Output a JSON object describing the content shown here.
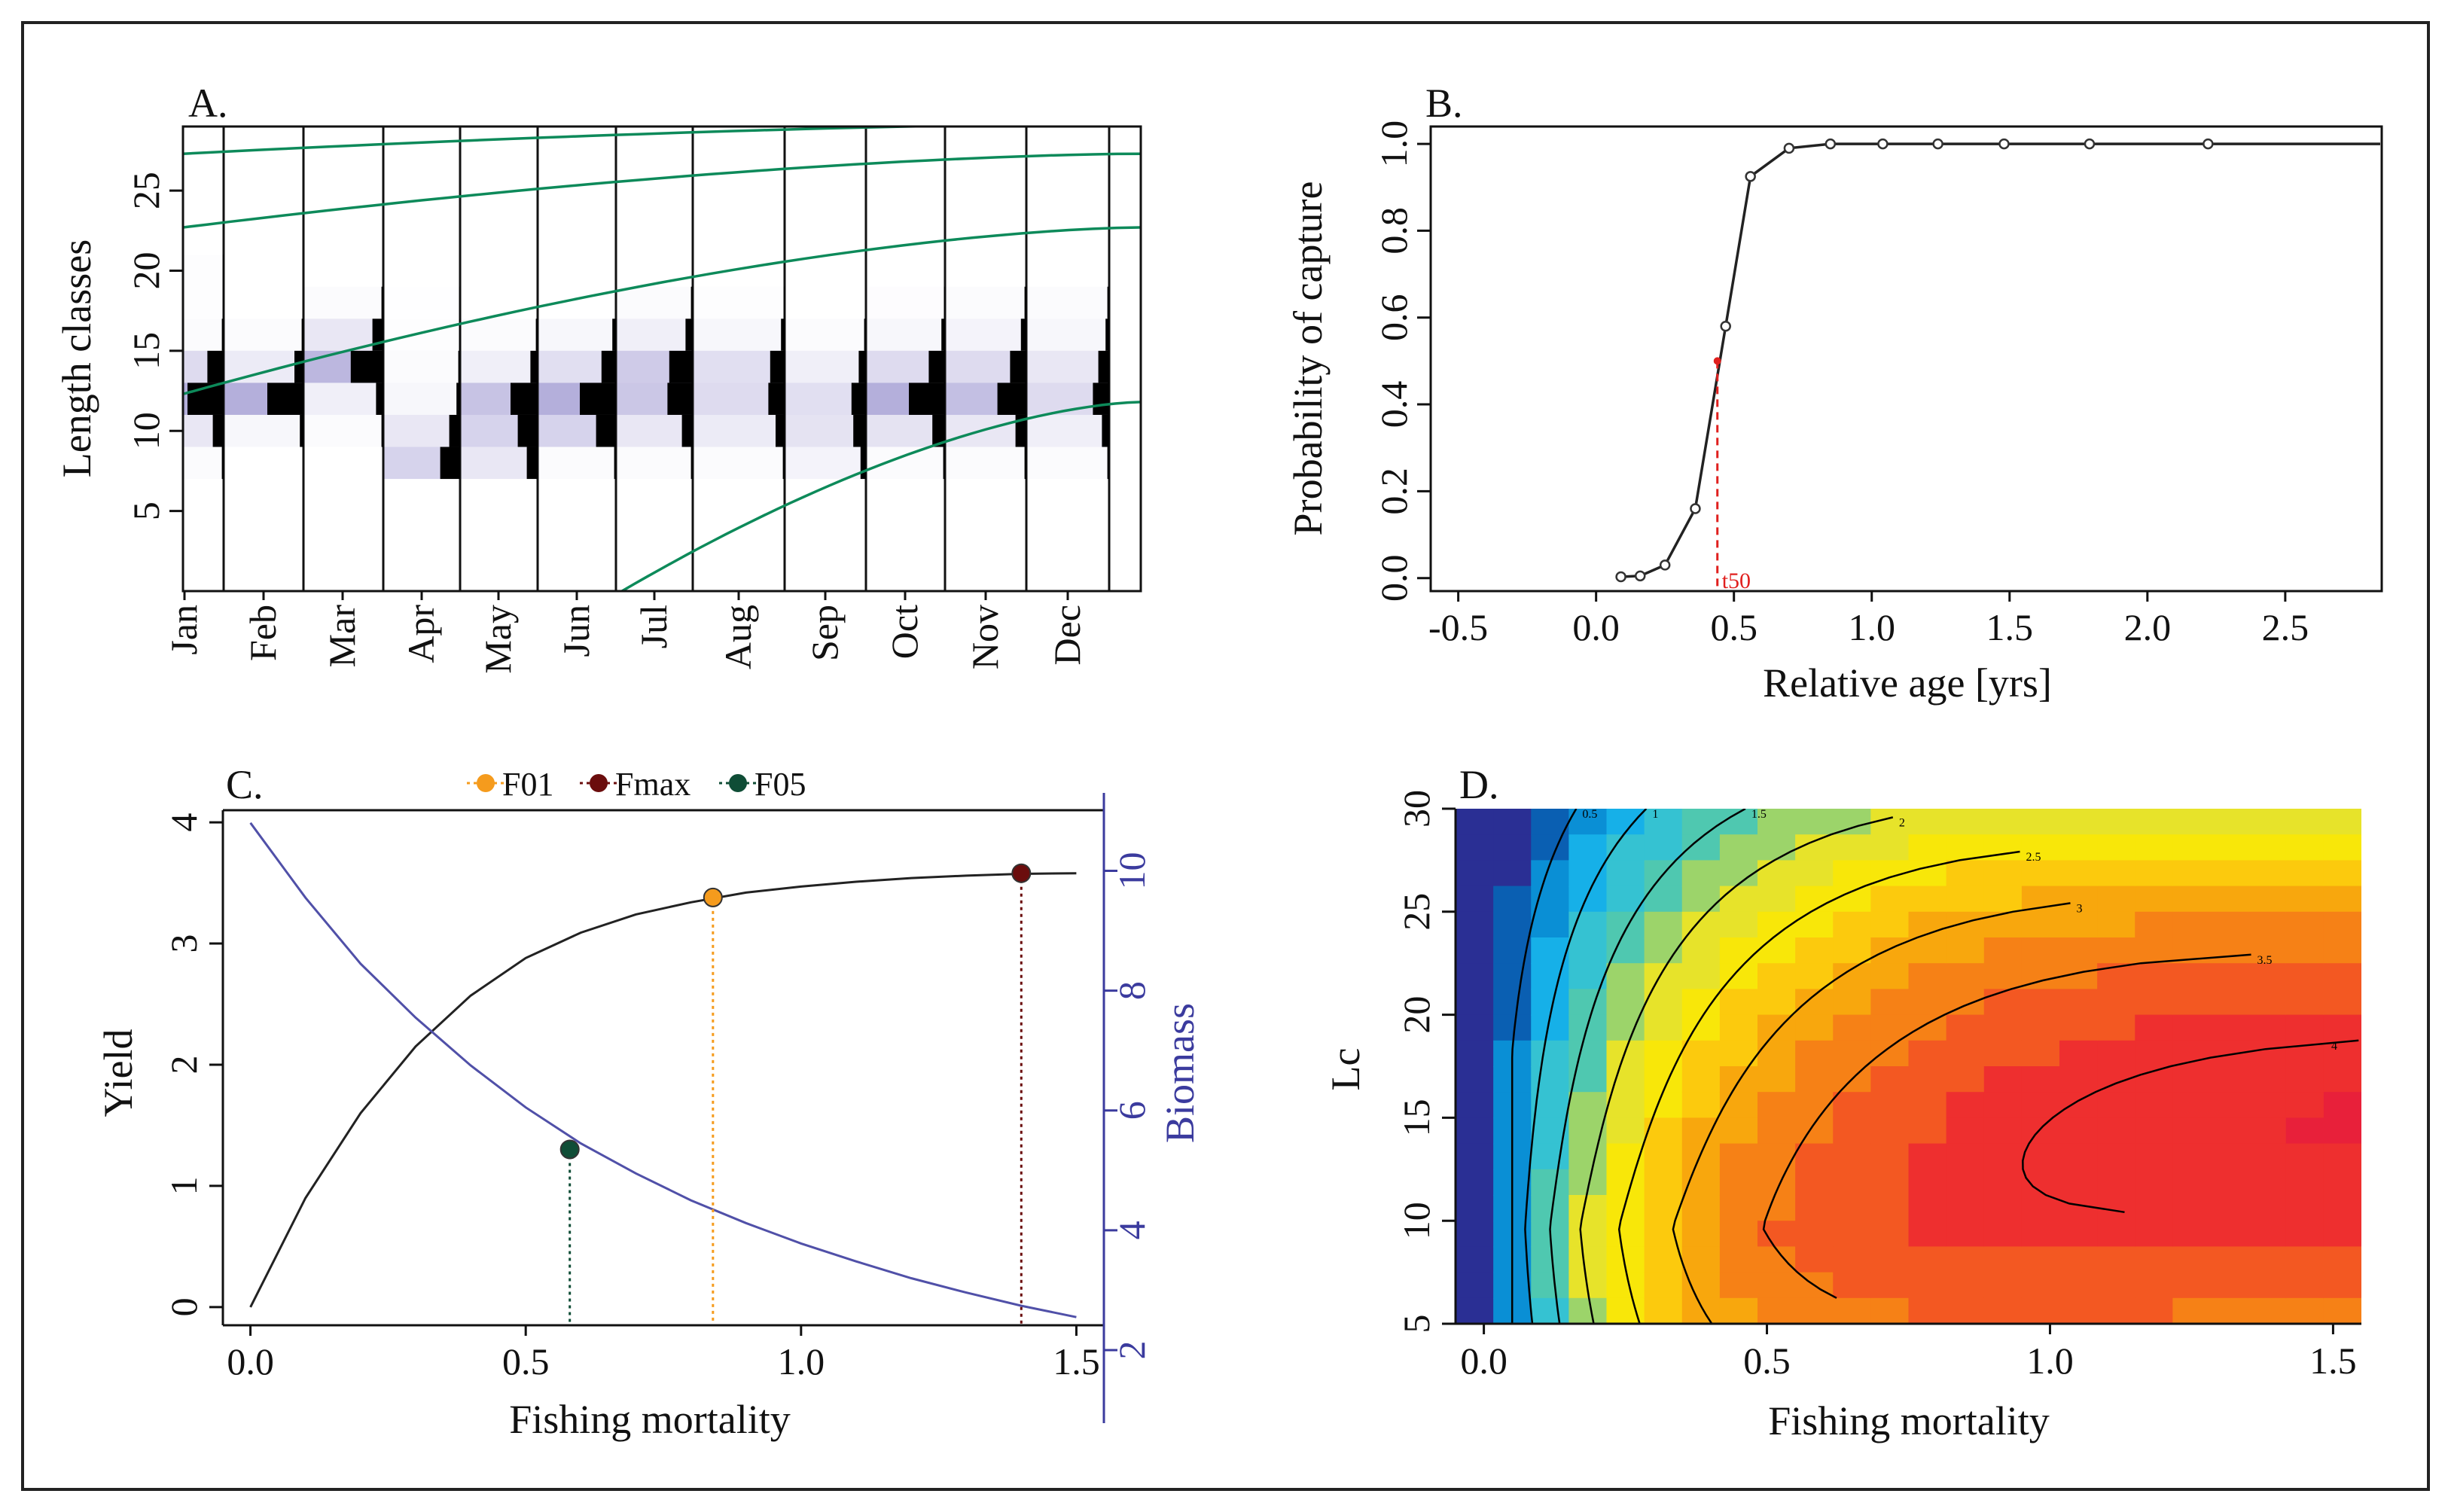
{
  "panels": {
    "A": {
      "label": "A.",
      "chart_data": {
        "type": "heatmap",
        "title": "",
        "xlabel": "",
        "ylabel": "Length classes",
        "months": [
          "Jan",
          "Feb",
          "Mar",
          "Apr",
          "May",
          "Jun",
          "Jul",
          "Aug",
          "Sep",
          "Oct",
          "Nov",
          "Dec"
        ],
        "ylim": [
          0,
          29
        ],
        "yticks": [
          5,
          10,
          15,
          20,
          25
        ],
        "length_bins": [
          8,
          10,
          12,
          14,
          16,
          18,
          20
        ],
        "samples": [
          {
            "month": 0.0,
            "freq": [
              0.05,
              0.3,
              1.0,
              0.45,
              0.05,
              0.02,
              0.02
            ]
          },
          {
            "month": 1.0,
            "freq": [
              0.0,
              0.1,
              1.0,
              0.25,
              0.05,
              0.0,
              0.0
            ]
          },
          {
            "month": 2.0,
            "freq": [
              0.0,
              0.05,
              0.2,
              0.9,
              0.3,
              0.05,
              0.0
            ]
          },
          {
            "month": 3.0,
            "freq": [
              0.55,
              0.3,
              0.1,
              0.05,
              0.02,
              0.01,
              0.0
            ]
          },
          {
            "month": 4.0,
            "freq": [
              0.3,
              0.55,
              0.75,
              0.2,
              0.05,
              0.0,
              0.0
            ]
          },
          {
            "month": 5.0,
            "freq": [
              0.05,
              0.55,
              1.0,
              0.4,
              0.1,
              0.0,
              0.0
            ]
          },
          {
            "month": 6.0,
            "freq": [
              0.05,
              0.3,
              0.7,
              0.65,
              0.2,
              0.05,
              0.0
            ]
          },
          {
            "month": 7.0,
            "freq": [
              0.05,
              0.25,
              0.45,
              0.4,
              0.1,
              0.02,
              0.0
            ]
          },
          {
            "month": 8.0,
            "freq": [
              0.15,
              0.35,
              0.4,
              0.2,
              0.05,
              0.0,
              0.0
            ]
          },
          {
            "month": 9.0,
            "freq": [
              0.05,
              0.35,
              1.0,
              0.45,
              0.1,
              0.03,
              0.0
            ]
          },
          {
            "month": 10.0,
            "freq": [
              0.05,
              0.3,
              0.8,
              0.45,
              0.15,
              0.05,
              0.0
            ]
          },
          {
            "month": 11.0,
            "freq": [
              0.05,
              0.2,
              0.45,
              0.3,
              0.1,
              0.05,
              0.0
            ]
          }
        ],
        "growth_curves": [
          {
            "x": [
              0,
              12
            ],
            "y": [
              27.3,
              29.2
            ]
          },
          {
            "x": [
              0,
              12
            ],
            "y": [
              22.7,
              27.3
            ]
          },
          {
            "x": [
              0,
              12
            ],
            "y": [
              12.3,
              22.7
            ]
          },
          {
            "x": [
              5.5,
              12
            ],
            "y": [
              0,
              11.8
            ]
          }
        ]
      }
    },
    "B": {
      "label": "B.",
      "chart_data": {
        "type": "line",
        "title": "",
        "xlabel": "Relative age [yrs]",
        "ylabel": "Probability of capture",
        "xlim": [
          -0.6,
          2.85
        ],
        "ylim": [
          -0.03,
          1.04
        ],
        "xticks": [
          -0.5,
          0.0,
          0.5,
          1.0,
          1.5,
          2.0,
          2.5
        ],
        "xtick_labels": [
          "-0.5",
          "0.0",
          "0.5",
          "1.0",
          "1.5",
          "2.0",
          "2.5"
        ],
        "yticks": [
          0.0,
          0.2,
          0.4,
          0.6,
          0.8,
          1.0
        ],
        "ytick_labels": [
          "0.0",
          "0.2",
          "0.4",
          "0.6",
          "0.8",
          "1.0"
        ],
        "x": [
          0.09,
          0.16,
          0.25,
          0.36,
          0.47,
          0.56,
          0.7,
          0.85,
          1.04,
          1.24,
          1.48,
          1.79,
          2.22
        ],
        "y": [
          0.003,
          0.005,
          0.03,
          0.16,
          0.58,
          0.925,
          0.99,
          1.0,
          1.0,
          1.0,
          1.0,
          1.0,
          1.0
        ],
        "t50": {
          "x": 0.44,
          "y": 0.5,
          "label": "t50"
        }
      }
    },
    "C": {
      "label": "C.",
      "chart_data": {
        "type": "line",
        "title": "",
        "xlabel": "Fishing mortality",
        "ylabel": "Yield",
        "ylabel_right": "Biomass",
        "xlim": [
          -0.05,
          1.55
        ],
        "ylim": [
          -0.15,
          4.1
        ],
        "ylim_right": [
          2.0,
          11.3
        ],
        "xticks": [
          0.0,
          0.5,
          1.0,
          1.5
        ],
        "xtick_labels": [
          "0.0",
          "0.5",
          "1.0",
          "1.5"
        ],
        "yticks": [
          0,
          1,
          2,
          3,
          4
        ],
        "yticks_right": [
          2,
          4,
          6,
          8,
          10
        ],
        "series": [
          {
            "name": "Yield",
            "color": "#222222",
            "x": [
              0.0,
              0.1,
              0.2,
              0.3,
              0.4,
              0.5,
              0.6,
              0.7,
              0.8,
              0.9,
              1.0,
              1.1,
              1.2,
              1.3,
              1.4,
              1.5
            ],
            "y": [
              0.0,
              0.9,
              1.6,
              2.15,
              2.57,
              2.88,
              3.09,
              3.24,
              3.34,
              3.42,
              3.47,
              3.51,
              3.54,
              3.56,
              3.575,
              3.58
            ]
          },
          {
            "name": "Biomass",
            "color": "#5050a8",
            "axis": "right",
            "x": [
              0.0,
              0.1,
              0.2,
              0.3,
              0.4,
              0.5,
              0.6,
              0.7,
              0.8,
              0.9,
              1.0,
              1.1,
              1.2,
              1.3,
              1.4,
              1.5
            ],
            "y": [
              10.8,
              9.55,
              8.45,
              7.55,
              6.75,
              6.05,
              5.45,
              4.95,
              4.5,
              4.12,
              3.78,
              3.48,
              3.2,
              2.96,
              2.74,
              2.55
            ]
          }
        ],
        "legend": [
          {
            "label": "F01",
            "color": "#f59b1d"
          },
          {
            "label": "Fmax",
            "color": "#6b0d0d"
          },
          {
            "label": "F05",
            "color": "#0f4d36"
          }
        ],
        "points": [
          {
            "name": "F01",
            "x": 0.84,
            "y": 3.38,
            "axis": "left",
            "color": "#f59b1d"
          },
          {
            "name": "Fmax",
            "x": 1.4,
            "y": 3.58,
            "axis": "left",
            "color": "#6b0d0d"
          },
          {
            "name": "F05",
            "x": 0.58,
            "y": 5.35,
            "axis": "right",
            "color": "#0f4d36"
          }
        ]
      }
    },
    "D": {
      "label": "D.",
      "chart_data": {
        "type": "heatmap",
        "title": "",
        "xlabel": "Fishing mortality",
        "ylabel": "Lc",
        "xlim": [
          -0.05,
          1.55
        ],
        "ylim": [
          5,
          30
        ],
        "xticks": [
          0.0,
          0.5,
          1.0,
          1.5
        ],
        "xtick_labels": [
          "0.0",
          "0.5",
          "1.0",
          "1.5"
        ],
        "yticks": [
          5,
          10,
          15,
          20,
          25,
          30
        ],
        "colors": [
          "#2a2f94",
          "#0a5fb2",
          "#0a8fd5",
          "#16b0e8",
          "#35c2d2",
          "#4fc8b0",
          "#9cd46a",
          "#e7e32a",
          "#f8e709",
          "#fcca0d",
          "#f8a70d",
          "#f68116",
          "#f35822",
          "#ee2f2f",
          "#e8203a"
        ],
        "contours": [
          {
            "label": "0.5",
            "level": 0.5
          },
          {
            "label": "1",
            "level": 1.0
          },
          {
            "label": "1.5",
            "level": 1.5
          },
          {
            "label": "2",
            "level": 2.0
          },
          {
            "label": "2.5",
            "level": 2.5
          },
          {
            "label": "3",
            "level": 3.0
          },
          {
            "label": "3.5",
            "level": 3.5
          },
          {
            "label": "4",
            "level": 4.0
          }
        ]
      }
    }
  }
}
